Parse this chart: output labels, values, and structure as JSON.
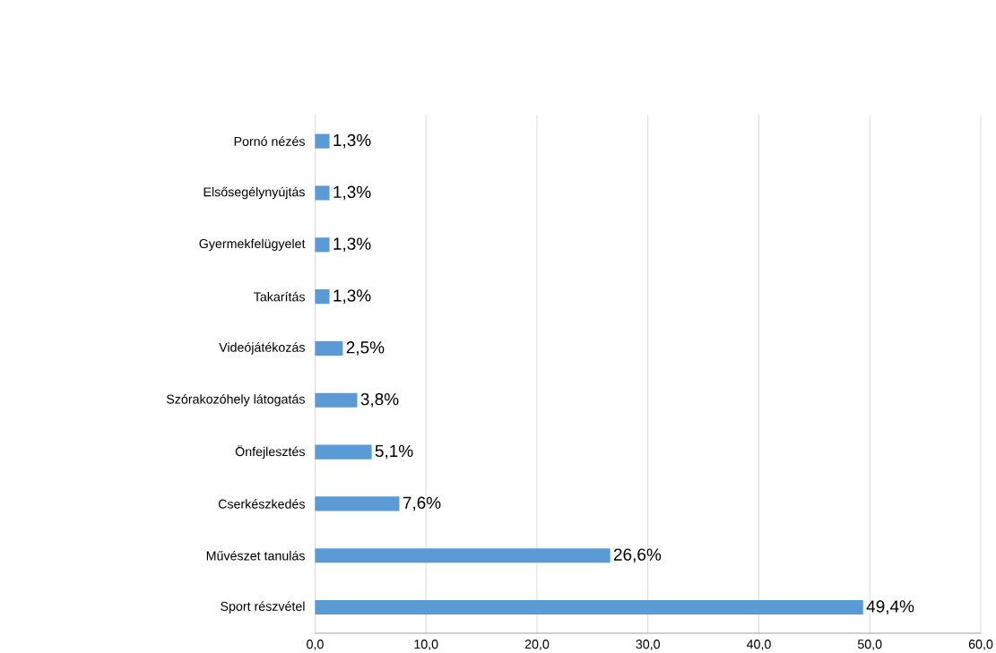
{
  "chart_data": {
    "type": "bar",
    "orientation": "horizontal",
    "categories": [
      "Pornó nézés",
      "Elsősegélynyújtás",
      "Gyermekfelügyelet",
      "Takarítás",
      "Videójátékozás",
      "Szórakozóhely látogatás",
      "Önfejlesztés",
      "Cserkészkedés",
      "Művészet tanulás",
      "Sport részvétel"
    ],
    "values": [
      1.3,
      1.3,
      1.3,
      1.3,
      2.5,
      3.8,
      5.1,
      7.6,
      26.6,
      49.4
    ],
    "value_labels": [
      "1,3%",
      "1,3%",
      "1,3%",
      "1,3%",
      "2,5%",
      "3,8%",
      "5,1%",
      "7,6%",
      "26,6%",
      "49,4%"
    ],
    "color": "#5b9bd5",
    "xlim": [
      0,
      60
    ],
    "xticks": [
      {
        "value": 0,
        "label": "0,0"
      },
      {
        "value": 10,
        "label": "10,0"
      },
      {
        "value": 20,
        "label": "20,0"
      },
      {
        "value": 30,
        "label": "30,0"
      },
      {
        "value": 40,
        "label": "40,0"
      },
      {
        "value": 50,
        "label": "50,0"
      },
      {
        "value": 60,
        "label": "60,0"
      }
    ],
    "grid": "x"
  }
}
